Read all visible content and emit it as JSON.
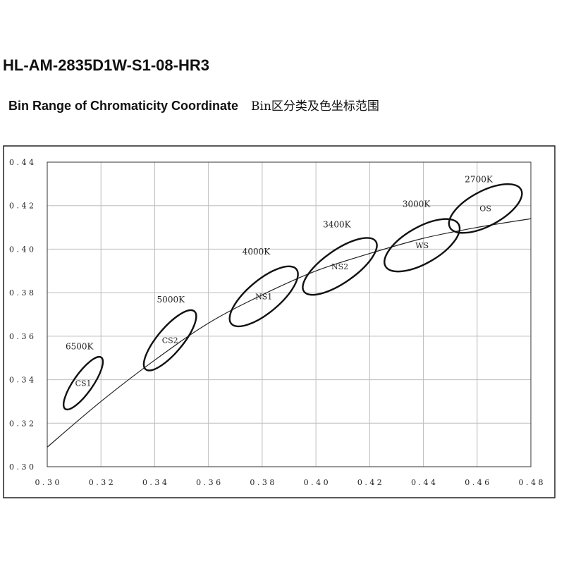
{
  "document": {
    "title": "HL-AM-2835D1W-S1-08-HR3",
    "subtitle_en": "Bin Range of Chromaticity Coordinate",
    "subtitle_cn": "Bin区分类及色坐标范围"
  },
  "chart_data": {
    "type": "scatter",
    "title": "",
    "xlabel": "",
    "ylabel": "",
    "xlim": [
      0.3,
      0.48
    ],
    "ylim": [
      0.3,
      0.44
    ],
    "x_ticks": [
      "0.30",
      "0.32",
      "0.34",
      "0.36",
      "0.38",
      "0.40",
      "0.42",
      "0.44",
      "0.46",
      "0.48"
    ],
    "y_ticks": [
      "0.30",
      "0.32",
      "0.34",
      "0.36",
      "0.38",
      "0.40",
      "0.42",
      "0.44"
    ],
    "grid": true,
    "blackbody_curve": [
      {
        "x": 0.3,
        "y": 0.309
      },
      {
        "x": 0.32,
        "y": 0.33
      },
      {
        "x": 0.34,
        "y": 0.349
      },
      {
        "x": 0.36,
        "y": 0.366
      },
      {
        "x": 0.38,
        "y": 0.379
      },
      {
        "x": 0.4,
        "y": 0.39
      },
      {
        "x": 0.42,
        "y": 0.398
      },
      {
        "x": 0.44,
        "y": 0.405
      },
      {
        "x": 0.46,
        "y": 0.41
      },
      {
        "x": 0.48,
        "y": 0.414
      }
    ],
    "bins": [
      {
        "name": "CS1",
        "cct": "6500K",
        "cx": 0.3134,
        "cy": 0.3384,
        "rx": 0.0117,
        "ry": 0.0044,
        "angle": -55,
        "cct_x": 0.312,
        "cct_y": 0.354
      },
      {
        "name": "CS2",
        "cct": "5000K",
        "cx": 0.3457,
        "cy": 0.3581,
        "rx": 0.0141,
        "ry": 0.0058,
        "angle": -50,
        "cct_x": 0.346,
        "cct_y": 0.3755
      },
      {
        "name": "NS1",
        "cct": "4000K",
        "cx": 0.3806,
        "cy": 0.3783,
        "rx": 0.0158,
        "ry": 0.0075,
        "angle": -40,
        "cct_x": 0.3778,
        "cct_y": 0.3975
      },
      {
        "name": "NS2",
        "cct": "3400K",
        "cx": 0.4089,
        "cy": 0.3921,
        "rx": 0.0163,
        "ry": 0.0075,
        "angle": -35,
        "cct_x": 0.4078,
        "cct_y": 0.4101
      },
      {
        "name": "WS",
        "cct": "3000K",
        "cx": 0.4395,
        "cy": 0.4018,
        "rx": 0.0157,
        "ry": 0.0083,
        "angle": -30,
        "cct_x": 0.4374,
        "cct_y": 0.4194
      },
      {
        "name": "OS",
        "cct": "2700K",
        "cx": 0.4631,
        "cy": 0.4187,
        "rx": 0.015,
        "ry": 0.008,
        "angle": -28,
        "cct_x": 0.4606,
        "cct_y": 0.4307
      }
    ]
  }
}
